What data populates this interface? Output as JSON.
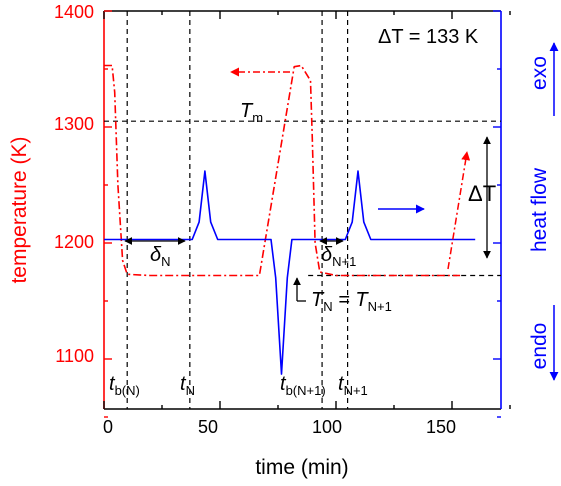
{
  "chart_data": {
    "type": "line",
    "title": "",
    "xlabel": "time (min)",
    "ylabel_left": "temperature (K)",
    "ylabel_right": "heat flow",
    "right_axis_labels": {
      "exo": "exo",
      "endo": "endo"
    },
    "xlim": [
      0,
      175
    ],
    "ylim": [
      1040,
      1400
    ],
    "x_ticks": [
      0,
      50,
      100,
      150
    ],
    "y_ticks": [
      1100,
      1200,
      1300,
      1400
    ],
    "grid": false,
    "colors": {
      "temperature": "#ff0000",
      "heat_flow": "#0000ff",
      "guides": "#000000"
    },
    "series": [
      {
        "style": "dash-dot",
        "axis": "left",
        "x": [
          0,
          3.5,
          4.6,
          6,
          8,
          10,
          20,
          60,
          67,
          82,
          85,
          89,
          89.8,
          91,
          93,
          100,
          145,
          153.5
        ],
        "y": [
          1353,
          1353,
          1330,
          1250,
          1185,
          1173,
          1172,
          1172,
          1172,
          1352,
          1353,
          1340,
          1290,
          1200,
          1175,
          1172,
          1172,
          1172
        ]
      },
      {
        "axis": "right",
        "x": [
          0,
          38,
          41,
          43.5,
          46,
          49,
          72,
          74,
          76.5,
          79,
          81,
          104,
          107,
          109.5,
          112,
          115,
          160
        ],
        "y": [
          1203,
          1203,
          1218,
          1262,
          1218,
          1203,
          1203,
          1170,
          1087,
          1170,
          1203,
          1203,
          1218,
          1262,
          1218,
          1203,
          1203
        ]
      }
    ],
    "annotations": {
      "delta_t_box": "ΔT = 133 K",
      "delta_t_arrow": "ΔT",
      "tm": "T",
      "tm_sub": "m",
      "delta_n": "δ",
      "delta_n_sub": "N",
      "delta_n1": "δ",
      "delta_n1_sub": "N+1",
      "tn_eq": "T",
      "tn_eq_sub1": "N",
      "tn_eq_mid": " = T",
      "tn_eq_sub2": "N+1",
      "t_bn": "t",
      "t_bn_sub": "b(N)",
      "t_n": "t",
      "t_n_sub": "N",
      "t_bn1": "t",
      "t_bn1_sub": "b(N+1)",
      "t_n1": "t",
      "t_n1_sub": "N+1"
    },
    "guides": {
      "vertical_x": [
        10,
        37,
        94,
        105
      ],
      "horizontal_tm": 1305,
      "horizontal_base": 1172,
      "delta_n_range": [
        10,
        37
      ],
      "delta_n1_range": [
        94,
        105
      ],
      "delta_t_range": [
        1172,
        1305
      ]
    }
  }
}
